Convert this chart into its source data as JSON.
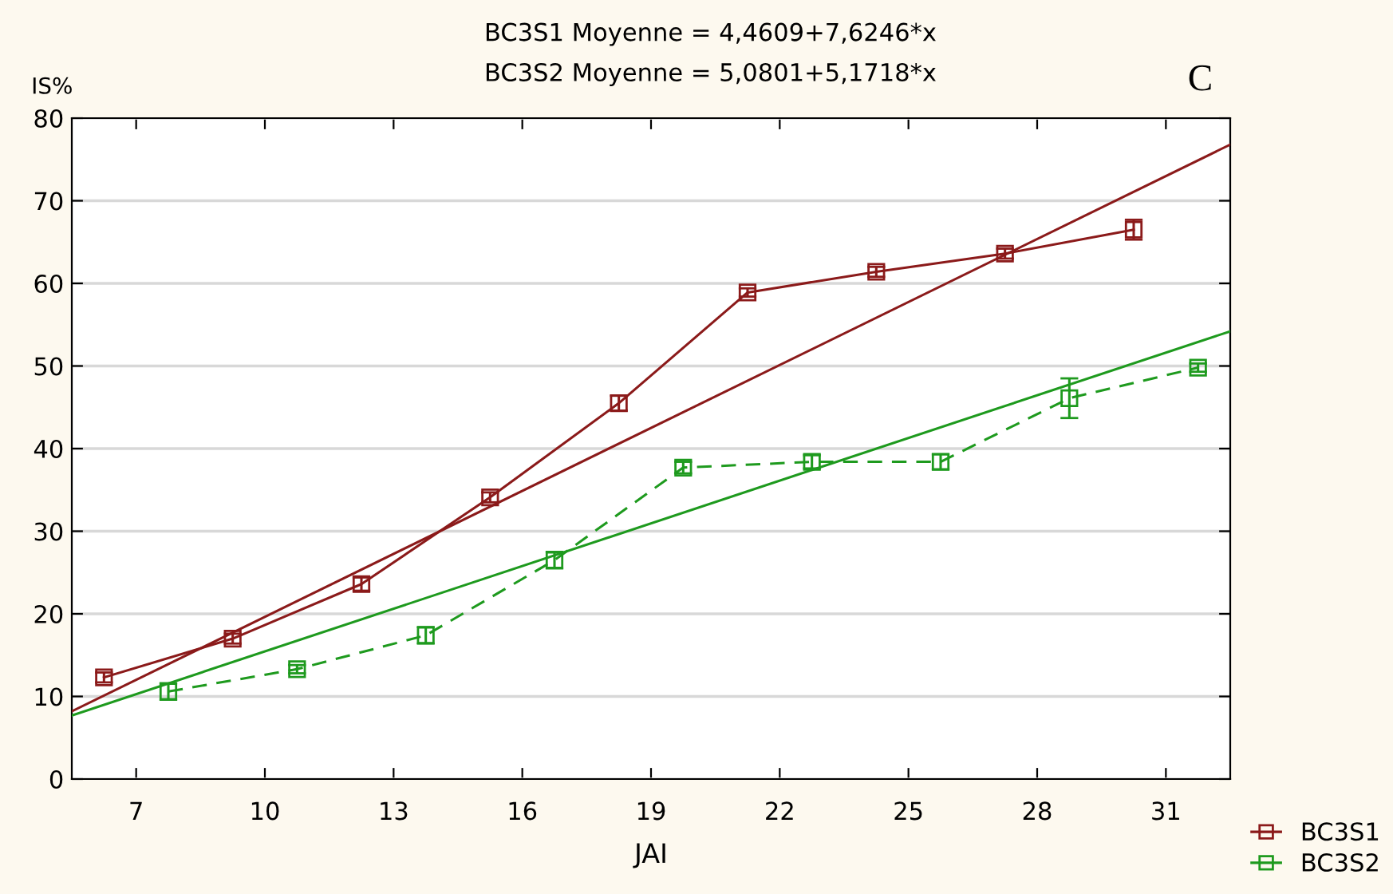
{
  "chart_data": {
    "type": "line",
    "title": "BC3S1 Moyenne = 4,4609+7,6246*x",
    "subtitle": "BC3S2 Moyenne = 5,0801+5,1718*x",
    "xlabel": "JAI",
    "ylabel": "IS%",
    "annotations": [
      "C"
    ],
    "xlim": [
      5.5,
      32.5
    ],
    "xticks": [
      7,
      10,
      13,
      16,
      19,
      22,
      25,
      28,
      31
    ],
    "ylim": [
      0,
      80
    ],
    "yticks": [
      0,
      10,
      20,
      30,
      40,
      50,
      60,
      70,
      80
    ],
    "grid": "y",
    "legend": "bottom right",
    "series": [
      {
        "name": "BC3S1",
        "color": "#8b1a1a",
        "marker": "square",
        "line_style": "solid",
        "x": [
          6.25,
          9.25,
          12.25,
          15.25,
          18.25,
          21.25,
          24.25,
          27.25,
          30.25
        ],
        "values": [
          12.3,
          17.0,
          23.6,
          34.1,
          45.5,
          58.9,
          61.4,
          63.6,
          66.5
        ],
        "errors": [
          0.6,
          0.6,
          0.8,
          0.6,
          0.9,
          0.5,
          0.6,
          0.6,
          1.2
        ]
      },
      {
        "name": "BC3S2",
        "color": "#1e9a1e",
        "marker": "square",
        "line_style": "dashed",
        "x": [
          7.75,
          10.75,
          13.75,
          16.75,
          19.75,
          22.75,
          25.75,
          28.75,
          31.75
        ],
        "values": [
          10.6,
          13.3,
          17.4,
          26.5,
          37.7,
          38.4,
          38.4,
          46.1,
          49.8
        ],
        "errors": [
          1.0,
          0.5,
          1.0,
          1.0,
          0.7,
          0.8,
          0.9,
          2.4,
          0.5
        ]
      },
      {
        "color": "#8b1a1a",
        "marker": "none",
        "line_style": "solid",
        "x": [
          5.5,
          32.5
        ],
        "values": [
          8.2,
          76.8
        ]
      },
      {
        "color": "#1e9a1e",
        "marker": "none",
        "line_style": "solid",
        "x": [
          5.5,
          32.5
        ],
        "values": [
          7.7,
          54.2
        ]
      }
    ]
  }
}
